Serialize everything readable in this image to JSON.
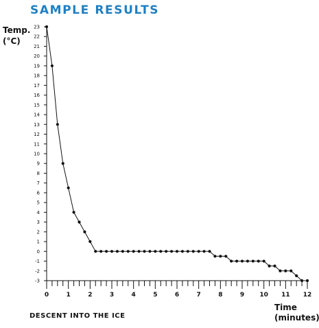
{
  "header": {
    "title": "SAMPLE RESULTS"
  },
  "caption": "DESCENT INTO THE ICE",
  "colors": {
    "title": "#1f7fc1",
    "line": "#111111",
    "axis": "#111111"
  },
  "chart_data": {
    "type": "line",
    "title": "",
    "ylabel_lines": [
      "Temp.",
      "(°C)"
    ],
    "xlabel_lines": [
      "Time",
      "(minutes)"
    ],
    "xlim": [
      0,
      12
    ],
    "ylim": [
      -3,
      23
    ],
    "x_ticks": [
      0,
      1,
      2,
      3,
      4,
      5,
      6,
      7,
      8,
      9,
      10,
      11,
      12
    ],
    "y_ticks": [
      -3,
      -2,
      -1,
      0,
      1,
      2,
      3,
      4,
      5,
      6,
      7,
      8,
      9,
      10,
      11,
      12,
      13,
      14,
      15,
      16,
      17,
      18,
      19,
      20,
      21,
      22,
      23
    ],
    "grid": false,
    "legend": "none",
    "series": [
      {
        "x": [
          0,
          0.25,
          0.5,
          0.75,
          1,
          1.25,
          1.5,
          1.75,
          2,
          2.25,
          2.5,
          2.75,
          3,
          3.25,
          3.5,
          3.75,
          4,
          4.25,
          4.5,
          4.75,
          5,
          5.25,
          5.5,
          5.75,
          6,
          6.25,
          6.5,
          6.75,
          7,
          7.25,
          7.5,
          7.75,
          8,
          8.25,
          8.5,
          8.75,
          9,
          9.25,
          9.5,
          9.75,
          10,
          10.25,
          10.5,
          10.75,
          11,
          11.25,
          11.5,
          11.75,
          12
        ],
        "y": [
          23,
          19,
          13,
          9,
          6.5,
          4,
          3,
          2,
          1,
          0,
          0,
          0,
          0,
          0,
          0,
          0,
          0,
          0,
          0,
          0,
          0,
          0,
          0,
          0,
          0,
          0,
          0,
          0,
          0,
          0,
          0,
          -0.5,
          -0.5,
          -0.5,
          -1,
          -1,
          -1,
          -1,
          -1,
          -1,
          -1,
          -1.5,
          -1.5,
          -2,
          -2,
          -2,
          -2.5,
          -3,
          -3
        ]
      }
    ]
  }
}
